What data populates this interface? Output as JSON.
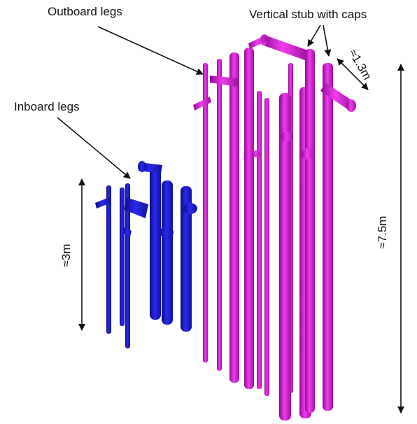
{
  "labels": {
    "outboard": "Outboard legs",
    "stub": "Vertical stub with caps",
    "inboard": "Inboard legs"
  },
  "dimensions": {
    "width": "≈1.3m",
    "outboard_height": "≈7.5m",
    "inboard_height": "≈3m"
  }
}
